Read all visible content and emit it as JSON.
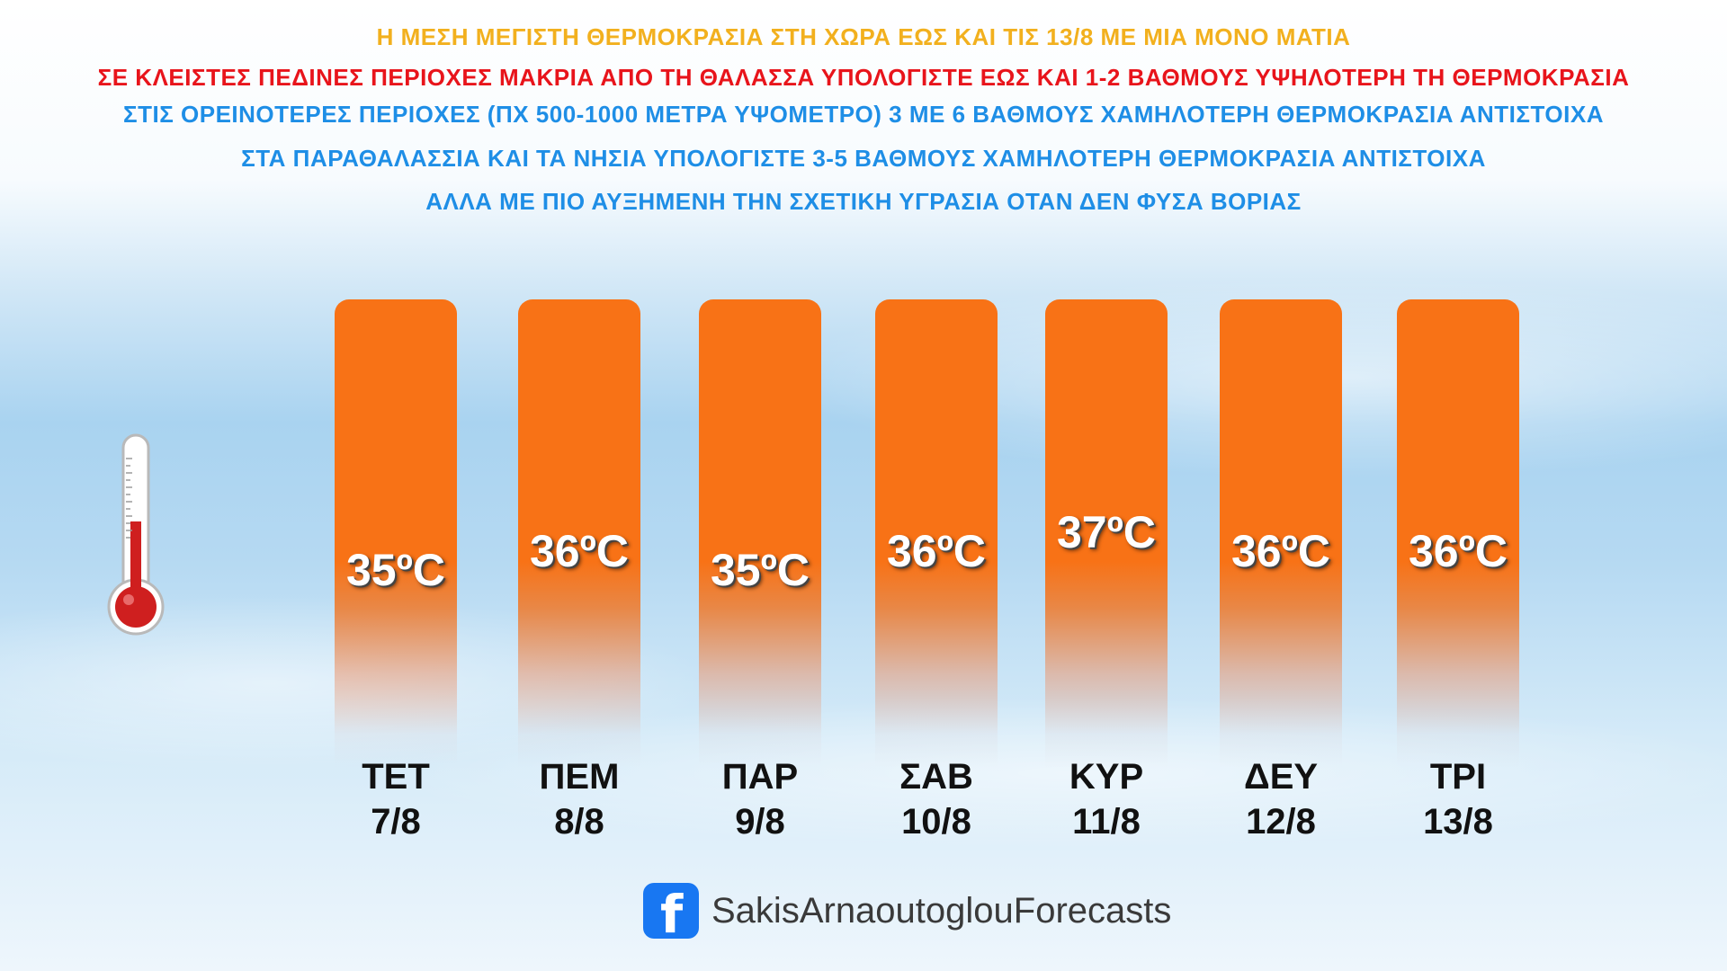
{
  "header": {
    "lines": [
      {
        "text": "Η ΜΕΣΗ ΜΕΓΙΣΤΗ ΘΕΡΜΟΚΡΑΣΙΑ ΣΤΗ ΧΩΡΑ ΕΩΣ ΚΑΙ ΤΙΣ 13/8 ΜΕ ΜΙΑ ΜΟΝΟ ΜΑΤΙΑ",
        "color": "#f2b01e"
      },
      {
        "text": "ΣΕ ΚΛΕΙΣΤΕΣ ΠΕΔΙΝΕΣ ΠΕΡΙΟΧΕΣ ΜΑΚΡΙΑ ΑΠΟ ΤΗ ΘΑΛΑΣΣΑ ΥΠΟΛΟΓΙΣΤΕ ΕΩΣ ΚΑΙ 1-2 ΒΑΘΜΟΥΣ ΥΨΗΛΟΤΕΡΗ ΤΗ ΘΕΡΜΟΚΡΑΣΙΑ",
        "color": "#e8141b"
      },
      {
        "text": "ΣΤΙΣ ΟΡΕΙΝΟΤΕΡΕΣ ΠΕΡΙΟΧΕΣ (ΠΧ 500-1000 ΜΕΤΡΑ ΥΨΟΜΕΤΡΟ) 3 ΜΕ 6 ΒΑΘΜΟΥΣ ΧΑΜΗΛΟΤΕΡΗ ΘΕΡΜΟΚΡΑΣΙΑ ΑΝΤΙΣΤΟΙΧΑ",
        "color": "#1e8ee6"
      },
      {
        "text": "ΣΤΑ ΠΑΡΑΘΑΛΑΣΣΙΑ ΚΑΙ ΤΑ ΝΗΣΙΑ ΥΠΟΛΟΓΙΣΤΕ 3-5 ΒΑΘΜΟΥΣ ΧΑΜΗΛΟΤΕΡΗ ΘΕΡΜΟΚΡΑΣΙΑ ΑΝΤΙΣΤΟΙΧΑ",
        "color": "#1e8ee6"
      },
      {
        "text": "ΑΛΛΑ ΜΕ ΠΙΟ ΑΥΞΗΜΕΝΗ ΤΗΝ ΣΧΕΤΙΚΗ ΥΓΡΑΣΙΑ ΟΤΑΝ ΔΕΝ ΦΥΣΑ ΒΟΡΙΑΣ",
        "color": "#1e8ee6"
      }
    ]
  },
  "chart_data": {
    "type": "bar",
    "unit": "ºC",
    "bar_color": "#f87216",
    "categories": [
      "ΤΕΤ 7/8",
      "ΠΕΜ 8/8",
      "ΠΑΡ 9/8",
      "ΣΑΒ 10/8",
      "ΚΥΡ 11/8",
      "ΔΕΥ 12/8",
      "ΤΡΙ 13/8"
    ],
    "days": [
      {
        "day": "ΤΕΤ",
        "date": "7/8",
        "value": 35,
        "label": "35ºC"
      },
      {
        "day": "ΠΕΜ",
        "date": "8/8",
        "value": 36,
        "label": "36ºC"
      },
      {
        "day": "ΠΑΡ",
        "date": "9/8",
        "value": 35,
        "label": "35ºC"
      },
      {
        "day": "ΣΑΒ",
        "date": "10/8",
        "value": 36,
        "label": "36ºC"
      },
      {
        "day": "ΚΥΡ",
        "date": "11/8",
        "value": 37,
        "label": "37ºC"
      },
      {
        "day": "ΔΕΥ",
        "date": "12/8",
        "value": 36,
        "label": "36ºC"
      },
      {
        "day": "ΤΡΙ",
        "date": "13/8",
        "value": 36,
        "label": "36ºC"
      }
    ]
  },
  "thermometer": {
    "icon": "thermometer-icon"
  },
  "footer": {
    "icon": "facebook-icon",
    "page_name": "SakisArnaoutoglouForecasts"
  }
}
